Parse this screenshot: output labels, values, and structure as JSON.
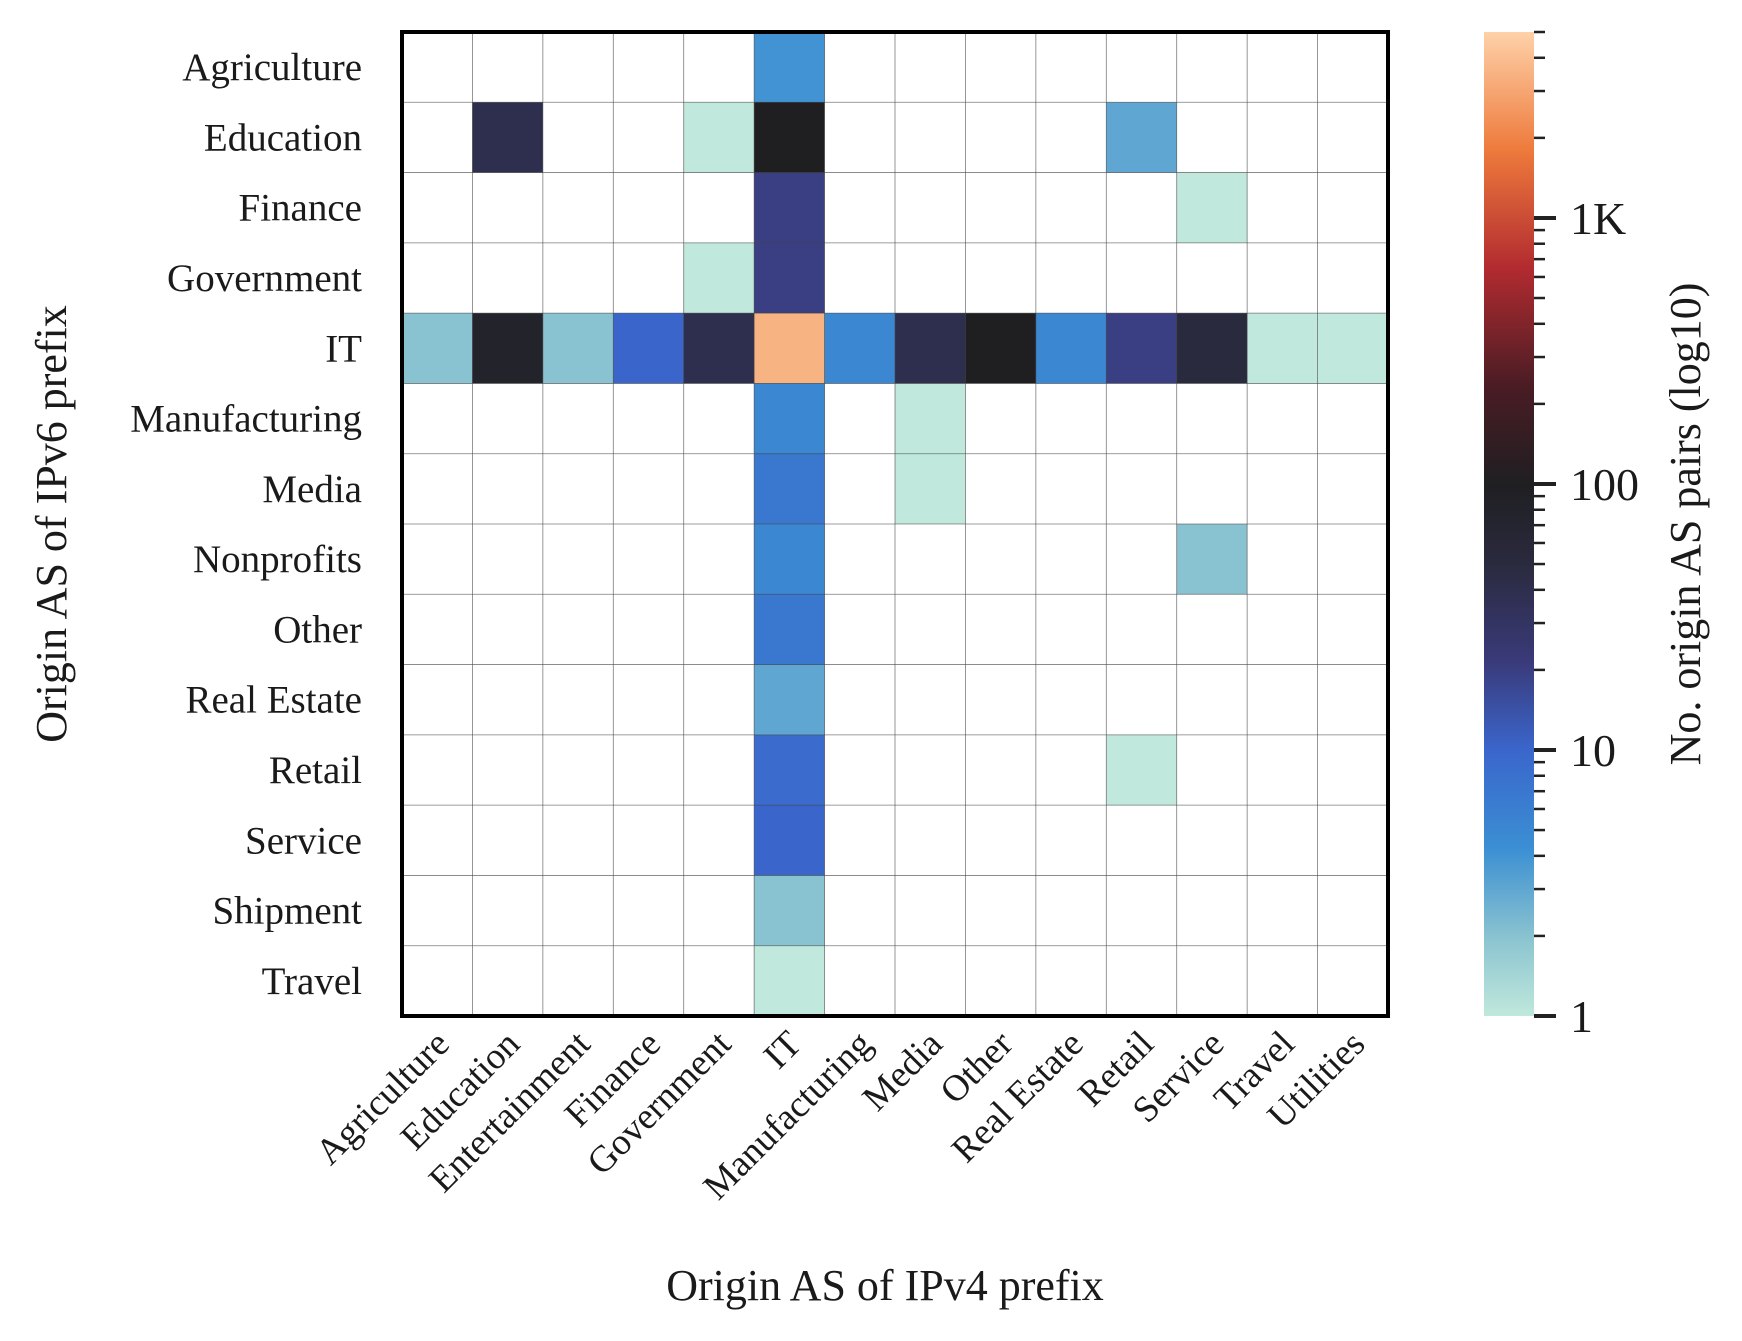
{
  "chart_data": {
    "type": "heatmap",
    "title": "",
    "xlabel": "Origin AS of IPv4 prefix",
    "ylabel": "Origin AS of IPv6 prefix",
    "x_categories": [
      "Agriculture",
      "Education",
      "Entertainment",
      "Finance",
      "Government",
      "IT",
      "Manufacturing",
      "Media",
      "Other",
      "Real Estate",
      "Retail",
      "Service",
      "Travel",
      "Utilities"
    ],
    "y_categories": [
      "Agriculture",
      "Education",
      "Finance",
      "Government",
      "IT",
      "Manufacturing",
      "Media",
      "Nonprofits",
      "Other",
      "Real Estate",
      "Retail",
      "Service",
      "Shipment",
      "Travel"
    ],
    "values": [
      [
        0,
        0,
        0,
        0,
        0,
        4,
        0,
        0,
        0,
        0,
        0,
        0,
        0,
        0
      ],
      [
        0,
        40,
        0,
        0,
        1,
        100,
        0,
        0,
        0,
        0,
        3,
        0,
        0,
        0
      ],
      [
        0,
        0,
        0,
        0,
        0,
        20,
        0,
        0,
        0,
        0,
        0,
        1,
        0,
        0
      ],
      [
        0,
        0,
        0,
        0,
        1,
        20,
        0,
        0,
        0,
        0,
        0,
        0,
        0,
        0
      ],
      [
        2,
        80,
        2,
        10,
        40,
        3500,
        5,
        40,
        100,
        5,
        20,
        50,
        1,
        1
      ],
      [
        0,
        0,
        0,
        0,
        0,
        5,
        0,
        1,
        0,
        0,
        0,
        0,
        0,
        0
      ],
      [
        0,
        0,
        0,
        0,
        0,
        7,
        0,
        1,
        0,
        0,
        0,
        0,
        0,
        0
      ],
      [
        0,
        0,
        0,
        0,
        0,
        5,
        0,
        0,
        0,
        0,
        0,
        2,
        0,
        0
      ],
      [
        0,
        0,
        0,
        0,
        0,
        7,
        0,
        0,
        0,
        0,
        0,
        0,
        0,
        0
      ],
      [
        0,
        0,
        0,
        0,
        0,
        3,
        0,
        0,
        0,
        0,
        0,
        0,
        0,
        0
      ],
      [
        0,
        0,
        0,
        0,
        0,
        9,
        0,
        0,
        0,
        0,
        1,
        0,
        0,
        0
      ],
      [
        0,
        0,
        0,
        0,
        0,
        10,
        0,
        0,
        0,
        0,
        0,
        0,
        0,
        0
      ],
      [
        0,
        0,
        0,
        0,
        0,
        2,
        0,
        0,
        0,
        0,
        0,
        0,
        0,
        0
      ],
      [
        0,
        0,
        0,
        0,
        0,
        1,
        0,
        0,
        0,
        0,
        0,
        0,
        0,
        0
      ]
    ],
    "colorbar": {
      "label": "No. origin AS pairs (log10)",
      "scale": "log",
      "range": [
        1,
        5000
      ],
      "tick_values": [
        1,
        10,
        100,
        1000
      ],
      "tick_labels": [
        "1",
        "10",
        "100",
        "1K"
      ]
    },
    "colormap_stops": [
      {
        "t": 0.0,
        "color": "#c0e8dc"
      },
      {
        "t": 0.08,
        "color": "#8ac3d0"
      },
      {
        "t": 0.17,
        "color": "#3b8fd3"
      },
      {
        "t": 0.27,
        "color": "#3a66cc"
      },
      {
        "t": 0.36,
        "color": "#3a3a7a"
      },
      {
        "t": 0.46,
        "color": "#2a2a3e"
      },
      {
        "t": 0.54,
        "color": "#1f1f22"
      },
      {
        "t": 0.64,
        "color": "#4a1c24"
      },
      {
        "t": 0.76,
        "color": "#b22b30"
      },
      {
        "t": 0.88,
        "color": "#ee7a3c"
      },
      {
        "t": 1.0,
        "color": "#fed1a8"
      }
    ],
    "empty_cell_color": "#ffffff",
    "grid": true
  }
}
